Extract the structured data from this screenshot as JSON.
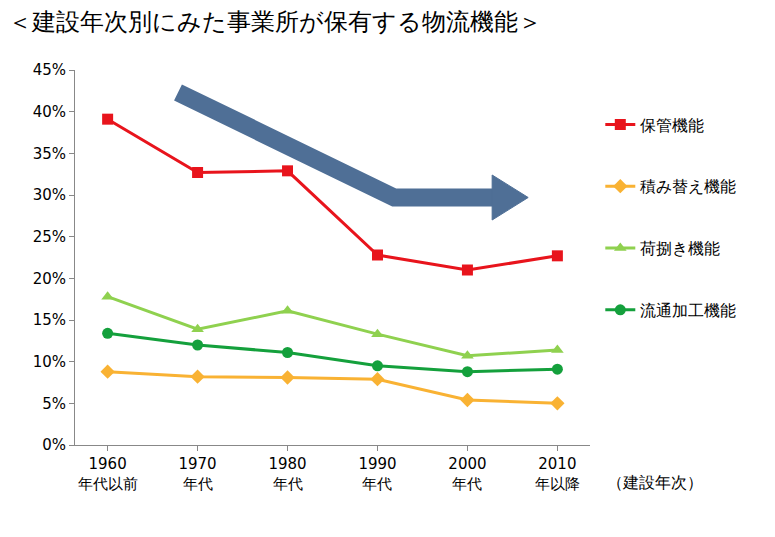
{
  "chart_data": {
    "type": "line",
    "title": "＜建設年次別にみた事業所が保有する物流機能＞",
    "x_label": "（建設年次）",
    "categories": [
      "1960\n年代以前",
      "1970\n年代",
      "1980\n年代",
      "1990\n年代",
      "2000\n年代",
      "2010\n年以降"
    ],
    "series": [
      {
        "name": "保管機能",
        "color": "#e8141c",
        "marker": "square",
        "values": [
          39.1,
          32.7,
          32.9,
          22.8,
          21.0,
          22.7
        ]
      },
      {
        "name": "積み替え機能",
        "color": "#f9b233",
        "marker": "diamond",
        "values": [
          8.8,
          8.2,
          8.1,
          7.9,
          5.4,
          5.0
        ]
      },
      {
        "name": "荷捌き機能",
        "color": "#8fd14f",
        "marker": "triangle",
        "values": [
          17.8,
          13.9,
          16.1,
          13.3,
          10.7,
          11.4
        ]
      },
      {
        "name": "流通加工機能",
        "color": "#14a03c",
        "marker": "circle",
        "values": [
          13.4,
          12.0,
          11.1,
          9.5,
          8.8,
          9.1
        ]
      }
    ],
    "ylim": [
      0,
      45
    ],
    "yticks": [
      {
        "value": 0,
        "label": "0%"
      },
      {
        "value": 5,
        "label": "5%"
      },
      {
        "value": 10,
        "label": "10%"
      },
      {
        "value": 15,
        "label": "15%"
      },
      {
        "value": 20,
        "label": "20%"
      },
      {
        "value": 25,
        "label": "25%"
      },
      {
        "value": 30,
        "label": "30%"
      },
      {
        "value": 35,
        "label": "35%"
      },
      {
        "value": 40,
        "label": "40%"
      },
      {
        "value": 45,
        "label": "45%"
      }
    ],
    "grid": false,
    "legend": "right"
  }
}
